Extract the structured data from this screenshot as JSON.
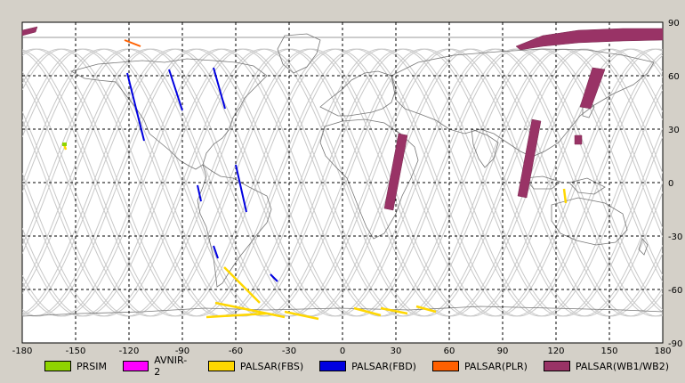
{
  "map": {
    "x_ticks": [
      "-180",
      "-150",
      "-120",
      "-90",
      "-60",
      "-30",
      "0",
      "30",
      "60",
      "90",
      "120",
      "150",
      "180"
    ],
    "y_ticks": [
      "90",
      "60",
      "30",
      "0",
      "-30",
      "-60",
      "-90"
    ]
  },
  "legend": [
    {
      "label": "PRSIM",
      "color": "#8fd400"
    },
    {
      "label": "AVNIR-2",
      "color": "#ff00ff"
    },
    {
      "label": "PALSAR(FBS)",
      "color": "#ffd700"
    },
    {
      "label": "PALSAR(FBD)",
      "color": "#0000e0"
    },
    {
      "label": "PALSAR(PLR)",
      "color": "#ff6000"
    },
    {
      "label": "PALSAR(WB1/WB2)",
      "color": "#993366"
    }
  ],
  "colors": {
    "background": "#d4d0c8",
    "plot": "#ffffff",
    "grid": "#000000",
    "coast": "#7a7a7a",
    "orbit": "#c8c8c8"
  }
}
